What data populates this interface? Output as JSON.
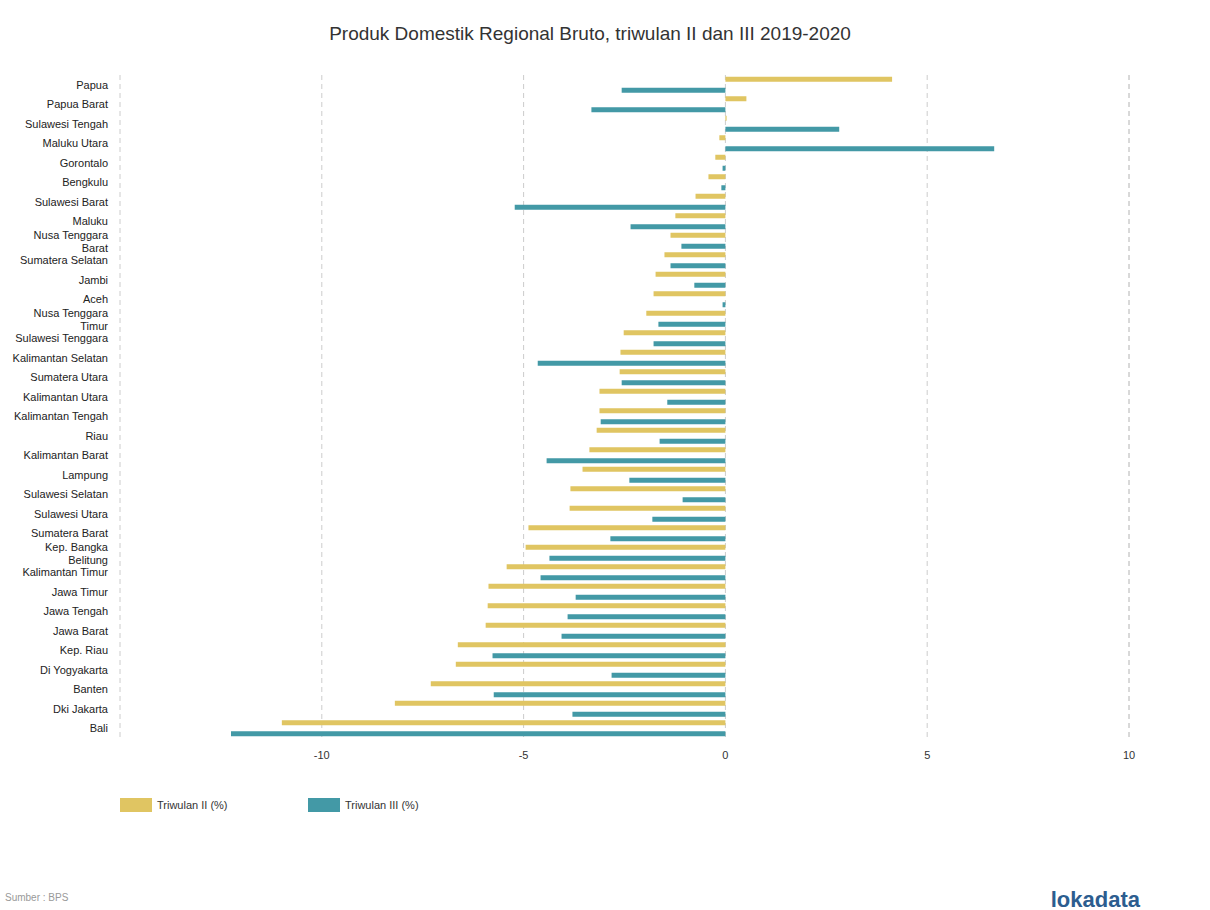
{
  "chart_data": {
    "type": "bar",
    "title": "Produk Domestik Regional Bruto, triwulan II dan III 2019-2020",
    "orientation": "horizontal",
    "grid": true,
    "legend": "bottom-left",
    "source": "Sumber : BPS",
    "brand": "lokadata",
    "categories": [
      "Papua",
      "Papua Barat",
      "Sulawesi Tengah",
      "Maluku Utara",
      "Gorontalo",
      "Bengkulu",
      "Sulawesi Barat",
      "Maluku",
      "Nusa Tenggara Barat",
      "Sumatera Selatan",
      "Jambi",
      "Aceh",
      "Nusa Tenggara Timur",
      "Sulawesi Tenggara",
      "Kalimantan Selatan",
      "Sumatera Utara",
      "Kalimantan Utara",
      "Kalimantan Tengah",
      "Riau",
      "Kalimantan Barat",
      "Lampung",
      "Sulawesi Selatan",
      "Sulawesi Utara",
      "Sumatera Barat",
      "Kep. Bangka Belitung",
      "Kalimantan Timur",
      "Jawa Timur",
      "Jawa Tengah",
      "Jawa Barat",
      "Kep. Riau",
      "Di Yogyakarta",
      "Banten",
      "Dki Jakarta",
      "Bali"
    ],
    "series": [
      {
        "name": "Triwulan II (%)",
        "color": "#e0c562",
        "values": [
          4.13,
          0.52,
          0.03,
          -0.15,
          -0.25,
          -0.42,
          -0.74,
          -1.24,
          -1.36,
          -1.51,
          -1.73,
          -1.78,
          -1.96,
          -2.52,
          -2.6,
          -2.62,
          -3.12,
          -3.12,
          -3.19,
          -3.37,
          -3.54,
          -3.84,
          -3.86,
          -4.88,
          -4.95,
          -5.42,
          -5.87,
          -5.89,
          -5.94,
          -6.63,
          -6.68,
          -7.3,
          -8.19,
          -10.99
        ]
      },
      {
        "name": "Triwulan III (%)",
        "color": "#4399a6",
        "values": [
          -2.57,
          -3.32,
          2.82,
          6.66,
          -0.07,
          -0.1,
          -5.22,
          -2.35,
          -1.09,
          -1.36,
          -0.77,
          -0.07,
          -1.66,
          -1.78,
          -4.65,
          -2.57,
          -1.44,
          -3.09,
          -1.63,
          -4.43,
          -2.38,
          -1.06,
          -1.81,
          -2.85,
          -4.36,
          -4.58,
          -3.71,
          -3.91,
          -4.06,
          -5.77,
          -2.82,
          -5.74,
          -3.79,
          -12.25
        ]
      }
    ],
    "xlim": [
      -15,
      10
    ],
    "xticks": [
      -10,
      -5,
      0,
      5,
      10
    ]
  }
}
